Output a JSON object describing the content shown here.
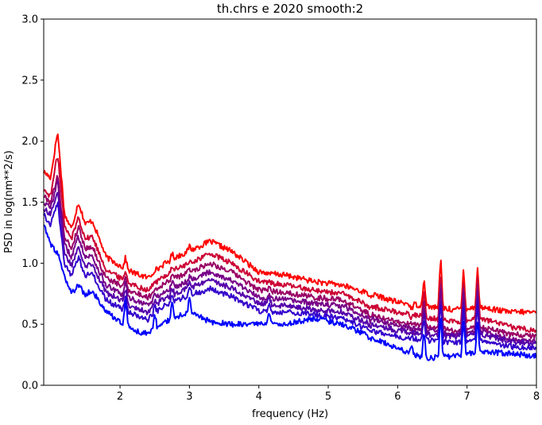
{
  "chart_data": {
    "type": "line",
    "title": "th.chrs e 2020 smooth:2",
    "xlabel": "frequency (Hz)",
    "ylabel": "PSD in log(nm**2/s)",
    "xlim": [
      0.9,
      8.0
    ],
    "ylim": [
      0.0,
      3.0
    ],
    "x_ticks": [
      2,
      3,
      4,
      5,
      6,
      7,
      8
    ],
    "y_ticks": [
      0.0,
      0.5,
      1.0,
      1.5,
      2.0,
      2.5,
      3.0
    ],
    "x_tick_labels": [
      "2",
      "3",
      "4",
      "5",
      "6",
      "7",
      "8"
    ],
    "y_tick_labels": [
      "0.0",
      "0.5",
      "1.0",
      "1.5",
      "2.0",
      "2.5",
      "3.0"
    ],
    "grid": false,
    "legend": "none",
    "x": [
      0.9,
      1.0,
      1.1,
      1.2,
      1.3,
      1.4,
      1.5,
      1.6,
      1.7,
      1.8,
      2.0,
      2.2,
      2.4,
      2.6,
      2.8,
      3.0,
      3.3,
      3.6,
      4.0,
      4.4,
      4.8,
      5.2,
      5.6,
      6.0,
      6.4,
      6.8,
      7.2,
      7.6,
      8.0
    ],
    "series": [
      {
        "color": "#ff0000",
        "values": [
          1.75,
          1.7,
          2.08,
          1.4,
          1.28,
          1.5,
          1.32,
          1.35,
          1.2,
          1.05,
          0.98,
          0.92,
          0.88,
          0.98,
          1.05,
          1.1,
          1.18,
          1.1,
          0.93,
          0.9,
          0.85,
          0.82,
          0.75,
          0.68,
          0.65,
          0.62,
          0.64,
          0.6,
          0.6
        ]
      },
      {
        "color": "#cc0033",
        "values": [
          1.6,
          1.55,
          1.9,
          1.3,
          1.2,
          1.38,
          1.2,
          1.22,
          1.08,
          0.95,
          0.88,
          0.82,
          0.78,
          0.88,
          0.95,
          1.0,
          1.08,
          1.0,
          0.85,
          0.82,
          0.78,
          0.75,
          0.65,
          0.6,
          0.56,
          0.52,
          0.55,
          0.48,
          0.45
        ]
      },
      {
        "color": "#990066",
        "values": [
          1.55,
          1.5,
          1.72,
          1.22,
          1.12,
          1.3,
          1.12,
          1.14,
          1.0,
          0.88,
          0.82,
          0.76,
          0.72,
          0.82,
          0.88,
          0.93,
          1.0,
          0.93,
          0.78,
          0.76,
          0.72,
          0.7,
          0.58,
          0.52,
          0.48,
          0.45,
          0.48,
          0.42,
          0.4
        ]
      },
      {
        "color": "#770088",
        "values": [
          1.5,
          1.45,
          1.68,
          1.15,
          1.05,
          1.22,
          1.05,
          1.06,
          0.93,
          0.82,
          0.75,
          0.7,
          0.66,
          0.75,
          0.81,
          0.86,
          0.93,
          0.86,
          0.72,
          0.7,
          0.67,
          0.65,
          0.55,
          0.49,
          0.45,
          0.42,
          0.45,
          0.38,
          0.36
        ]
      },
      {
        "color": "#5500aa",
        "values": [
          1.45,
          1.4,
          1.6,
          1.08,
          0.98,
          1.14,
          0.98,
          1.0,
          0.87,
          0.76,
          0.7,
          0.64,
          0.6,
          0.7,
          0.75,
          0.8,
          0.86,
          0.8,
          0.67,
          0.65,
          0.62,
          0.6,
          0.5,
          0.45,
          0.42,
          0.4,
          0.42,
          0.36,
          0.34
        ]
      },
      {
        "color": "#3300cc",
        "values": [
          1.4,
          1.32,
          1.5,
          1.0,
          0.9,
          1.05,
          0.9,
          0.92,
          0.8,
          0.7,
          0.63,
          0.58,
          0.54,
          0.64,
          0.69,
          0.74,
          0.79,
          0.73,
          0.61,
          0.6,
          0.58,
          0.55,
          0.45,
          0.4,
          0.37,
          0.35,
          0.37,
          0.32,
          0.3
        ]
      },
      {
        "color": "#0000ff",
        "values": [
          1.32,
          1.15,
          1.08,
          0.88,
          0.75,
          0.82,
          0.74,
          0.78,
          0.68,
          0.6,
          0.52,
          0.45,
          0.42,
          0.5,
          0.56,
          0.6,
          0.52,
          0.5,
          0.5,
          0.5,
          0.55,
          0.5,
          0.4,
          0.3,
          0.22,
          0.24,
          0.28,
          0.26,
          0.24
        ]
      }
    ],
    "spikes": [
      {
        "x": 2.08,
        "values": [
          1.05,
          0.95,
          0.9,
          0.85,
          0.8,
          0.75,
          0.72
        ]
      },
      {
        "x": 2.5,
        "values": [
          0.95,
          0.85,
          0.8,
          0.75,
          0.7,
          0.65,
          0.6
        ]
      },
      {
        "x": 2.75,
        "values": [
          1.08,
          0.98,
          0.92,
          0.86,
          0.8,
          0.75,
          0.7
        ]
      },
      {
        "x": 3.0,
        "values": [
          1.14,
          1.0,
          0.95,
          0.9,
          0.85,
          0.8,
          0.72
        ]
      },
      {
        "x": 4.15,
        "values": [
          0.9,
          0.85,
          0.8,
          0.75,
          0.72,
          0.68,
          0.6
        ]
      },
      {
        "x": 5.6,
        "values": [
          0.72,
          0.62,
          0.58,
          0.52,
          0.48,
          0.44,
          0.38
        ]
      },
      {
        "x": 6.2,
        "values": [
          0.62,
          0.55,
          0.5,
          0.46,
          0.42,
          0.4,
          0.34
        ]
      },
      {
        "x": 6.38,
        "values": [
          0.9,
          0.78,
          0.72,
          0.66,
          0.6,
          0.55,
          0.45
        ]
      },
      {
        "x": 6.62,
        "values": [
          1.06,
          0.95,
          0.88,
          0.82,
          0.75,
          0.7,
          0.58
        ]
      },
      {
        "x": 6.95,
        "values": [
          0.96,
          0.88,
          0.82,
          0.76,
          0.7,
          0.64,
          0.55
        ]
      },
      {
        "x": 7.15,
        "values": [
          0.98,
          0.9,
          0.84,
          0.78,
          0.72,
          0.66,
          0.55
        ]
      }
    ]
  }
}
